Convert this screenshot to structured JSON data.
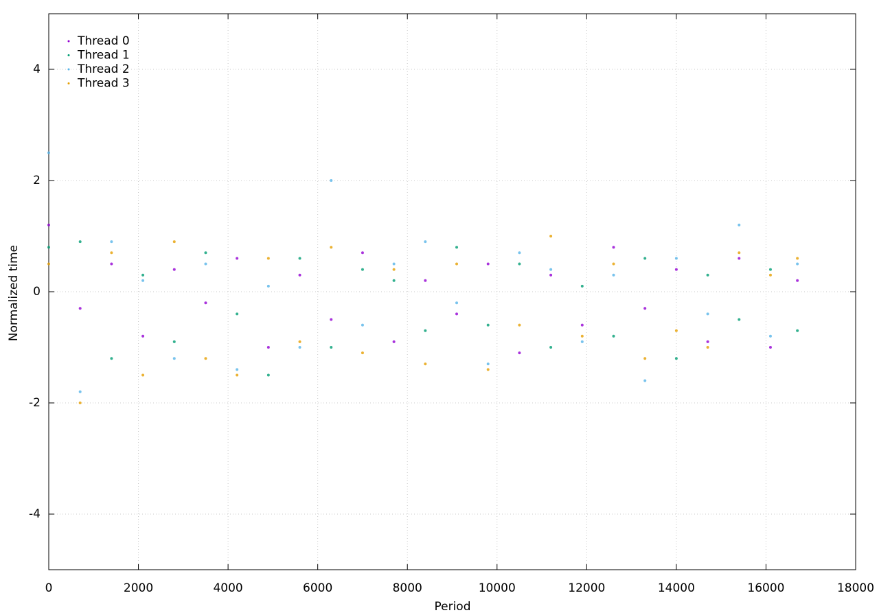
{
  "chart_data": {
    "type": "scatter",
    "xlabel": "Period",
    "ylabel": "Normalized time",
    "x": [
      0,
      700,
      1400,
      2100,
      2800,
      3500,
      4200,
      4900,
      5600,
      6300,
      7000,
      7700,
      8400,
      9100,
      9800,
      10500,
      11200,
      11900,
      12600,
      13300,
      14000,
      14700,
      15400,
      16100,
      16700
    ],
    "series": [
      {
        "name": "Thread 0",
        "color": "#9400d3",
        "values": [
          1.2,
          -0.3,
          0.5,
          -0.8,
          0.4,
          -0.2,
          0.6,
          -1.0,
          0.3,
          -0.5,
          0.7,
          -0.9,
          0.2,
          -0.4,
          0.5,
          -1.1,
          0.3,
          -0.6,
          0.8,
          -0.3,
          0.4,
          -0.9,
          0.6,
          -1.0,
          0.2
        ]
      },
      {
        "name": "Thread 1",
        "color": "#009e73",
        "values": [
          0.8,
          0.9,
          -1.2,
          0.3,
          -0.9,
          0.7,
          -0.4,
          -1.5,
          0.6,
          -1.0,
          0.4,
          0.2,
          -0.7,
          0.8,
          -0.6,
          0.5,
          -1.0,
          0.1,
          -0.8,
          0.6,
          -1.2,
          0.3,
          -0.5,
          0.4,
          -0.7
        ]
      },
      {
        "name": "Thread 2",
        "color": "#56b4e9",
        "values": [
          2.5,
          -1.8,
          0.9,
          0.2,
          -1.2,
          0.5,
          -1.4,
          0.1,
          -1.0,
          2.0,
          -0.6,
          0.5,
          0.9,
          -0.2,
          -1.3,
          0.7,
          0.4,
          -0.9,
          0.3,
          -1.6,
          0.6,
          -0.4,
          1.2,
          -0.8,
          0.5
        ]
      },
      {
        "name": "Thread 3",
        "color": "#e69f00",
        "values": [
          0.5,
          -2.0,
          0.7,
          -1.5,
          0.9,
          -1.2,
          -1.5,
          0.6,
          -0.9,
          0.8,
          -1.1,
          0.4,
          -1.3,
          0.5,
          -1.4,
          -0.6,
          1.0,
          -0.8,
          0.5,
          -1.2,
          -0.7,
          -1.0,
          0.7,
          0.3,
          0.6
        ]
      }
    ],
    "xlim": [
      0,
      18000
    ],
    "xticks": [
      0,
      2000,
      4000,
      6000,
      8000,
      10000,
      12000,
      14000,
      16000,
      18000
    ],
    "ylim": [
      -5,
      5
    ],
    "yticks": [
      -4,
      -2,
      0,
      2,
      4
    ],
    "grid": true,
    "legend": "upper-left"
  }
}
